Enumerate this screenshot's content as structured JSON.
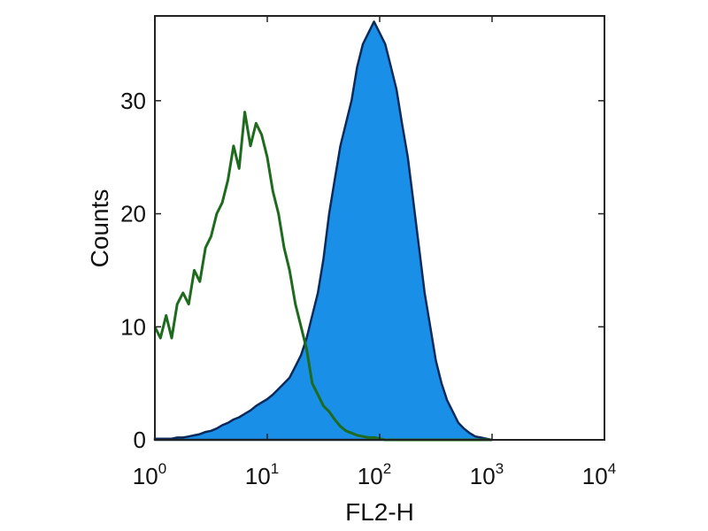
{
  "chart_data": {
    "type": "area",
    "title": "",
    "xlabel": "FL2-H",
    "ylabel": "Counts",
    "xscale": "log",
    "xlim": [
      1,
      10000
    ],
    "ylim": [
      0,
      37.5
    ],
    "grid": false,
    "legend": "none",
    "x_ticks": [
      {
        "base": "10",
        "exp": "0",
        "value": 1
      },
      {
        "base": "10",
        "exp": "1",
        "value": 10
      },
      {
        "base": "10",
        "exp": "2",
        "value": 100
      },
      {
        "base": "10",
        "exp": "3",
        "value": 1000
      },
      {
        "base": "10",
        "exp": "4",
        "value": 10000
      }
    ],
    "y_ticks": [
      "0",
      "10",
      "20",
      "30"
    ],
    "x": [
      1,
      1.12,
      1.26,
      1.41,
      1.58,
      1.78,
      2,
      2.24,
      2.51,
      2.82,
      3.16,
      3.55,
      3.98,
      4.47,
      5.01,
      5.62,
      6.31,
      7.08,
      7.94,
      8.91,
      10,
      11.2,
      12.6,
      14.1,
      15.8,
      17.8,
      20,
      22.4,
      25.1,
      28.2,
      31.6,
      35.5,
      39.8,
      44.7,
      50.1,
      56.2,
      63.1,
      70.8,
      79.4,
      89.1,
      100,
      112,
      126,
      141,
      158,
      178,
      200,
      224,
      251,
      282,
      316,
      355,
      398,
      447,
      501,
      562,
      631,
      708,
      794,
      891,
      1000
    ],
    "series": [
      {
        "style": "outline",
        "color": "#1e6b1e",
        "values": [
          10,
          9,
          11,
          9,
          12,
          13,
          12,
          15,
          14,
          17,
          18,
          20,
          21,
          23,
          26,
          24,
          29,
          26,
          28,
          27,
          25,
          22,
          20,
          17,
          15,
          12,
          10,
          8,
          5,
          4,
          3,
          2.5,
          1.8,
          1.2,
          0.8,
          0.6,
          0.4,
          0.3,
          0.2,
          0.2,
          0.1,
          0,
          0,
          0,
          0,
          0,
          0,
          0,
          0,
          0,
          0,
          0,
          0,
          0,
          0,
          0,
          0,
          0,
          0,
          0,
          0
        ]
      },
      {
        "style": "filled",
        "color": "#1a8fe8",
        "edge_color": "#0b2a5c",
        "values": [
          0.1,
          0.1,
          0.1,
          0.1,
          0.2,
          0.2,
          0.3,
          0.4,
          0.5,
          0.7,
          0.8,
          1.0,
          1.3,
          1.5,
          1.8,
          2.0,
          2.3,
          2.6,
          3,
          3.3,
          3.6,
          4,
          4.5,
          5,
          5.5,
          6.5,
          7.5,
          9,
          11,
          13,
          16,
          20,
          23,
          26,
          28,
          30,
          33,
          35,
          36,
          37,
          36,
          35,
          33,
          31,
          28,
          25,
          21,
          17,
          13,
          10,
          7,
          5,
          3.5,
          2.5,
          1.5,
          1,
          0.6,
          0.3,
          0.2,
          0.1,
          0
        ]
      }
    ]
  }
}
